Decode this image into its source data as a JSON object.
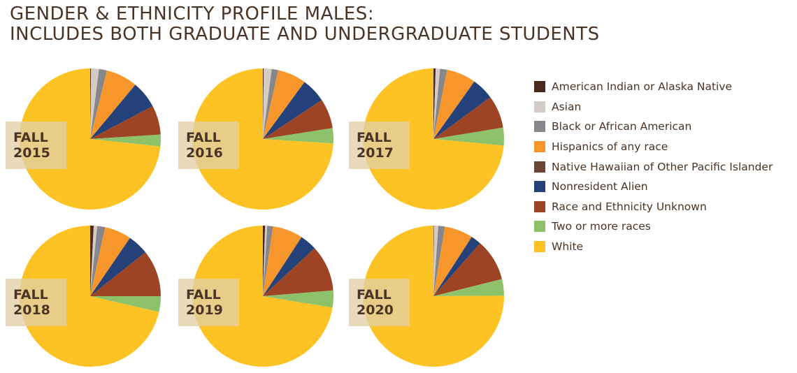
{
  "title": {
    "line1": "GENDER & ETHNICITY PROFILE MALES:",
    "line2": "INCLUDES BOTH GRADUATE AND UNDERGRADUATE STUDENTS"
  },
  "colors": {
    "American Indian or Alaska Native": "#4a2a1c",
    "Asian": "#d4cbc6",
    "Black or African American": "#85878a",
    "Hispanics of any race": "#f7962b",
    "Native Hawaiian of Other Pacific Islander": "#6e4434",
    "Nonresident Alien": "#24417a",
    "Race and Ethnicity Unknown": "#9c4423",
    "Two or more races": "#8dc26a",
    "White": "#fdc223",
    "label_box": "#e1cfa6",
    "label_text": "#4a3426"
  },
  "legend": [
    "American Indian or Alaska Native",
    "Asian",
    "Black or African American",
    "Hispanics of any race",
    "Native Hawaiian of Other Pacific Islander",
    "Nonresident Alien",
    "Race and Ethnicity Unknown",
    "Two or more races",
    "White"
  ],
  "chart_data": [
    {
      "type": "pie",
      "label": [
        "FALL",
        "2015"
      ],
      "categories": [
        "American Indian or Alaska Native",
        "Asian",
        "Black or African American",
        "Hispanics of any race",
        "Native Hawaiian of Other Pacific Islander",
        "Nonresident Alien",
        "Race and Ethnicity Unknown",
        "Two or more races",
        "White"
      ],
      "values": [
        0.2,
        1.8,
        1.8,
        7.2,
        0.1,
        6.2,
        6.7,
        2.7,
        73.3
      ]
    },
    {
      "type": "pie",
      "label": [
        "FALL",
        "2016"
      ],
      "categories": [
        "American Indian or Alaska Native",
        "Asian",
        "Black or African American",
        "Hispanics of any race",
        "Native Hawaiian of Other Pacific Islander",
        "Nonresident Alien",
        "Race and Ethnicity Unknown",
        "Two or more races",
        "White"
      ],
      "values": [
        0.2,
        1.8,
        1.5,
        6.5,
        0.1,
        5.6,
        6.8,
        3.5,
        74.0
      ]
    },
    {
      "type": "pie",
      "label": [
        "FALL",
        "2017"
      ],
      "categories": [
        "American Indian or Alaska Native",
        "Asian",
        "Black or African American",
        "Hispanics of any race",
        "Native Hawaiian of Other Pacific Islander",
        "Nonresident Alien",
        "Race and Ethnicity Unknown",
        "Two or more races",
        "White"
      ],
      "values": [
        0.5,
        1.0,
        1.6,
        6.7,
        0.1,
        5.0,
        7.5,
        4.1,
        73.5
      ]
    },
    {
      "type": "pie",
      "label": [
        "FALL",
        "2018"
      ],
      "categories": [
        "American Indian or Alaska Native",
        "Asian",
        "Black or African American",
        "Hispanics of any race",
        "Native Hawaiian of Other Pacific Islander",
        "Nonresident Alien",
        "Race and Ethnicity Unknown",
        "Two or more races",
        "White"
      ],
      "values": [
        0.8,
        0.8,
        1.8,
        6.1,
        0.1,
        4.7,
        10.7,
        3.6,
        71.4
      ]
    },
    {
      "type": "pie",
      "label": [
        "FALL",
        "2019"
      ],
      "categories": [
        "American Indian or Alaska Native",
        "Asian",
        "Black or African American",
        "Hispanics of any race",
        "Native Hawaiian of Other Pacific Islander",
        "Nonresident Alien",
        "Race and Ethnicity Unknown",
        "Two or more races",
        "White"
      ],
      "values": [
        0.5,
        0.5,
        1.3,
        6.9,
        0.1,
        3.8,
        10.6,
        3.9,
        72.4
      ]
    },
    {
      "type": "pie",
      "label": [
        "FALL",
        "2020"
      ],
      "categories": [
        "American Indian or Alaska Native",
        "Asian",
        "Black or African American",
        "Hispanics of any race",
        "Native Hawaiian of Other Pacific Islander",
        "Nonresident Alien",
        "Race and Ethnicity Unknown",
        "Two or more races",
        "White"
      ],
      "values": [
        0.1,
        1.0,
        1.5,
        6.5,
        0.1,
        2.3,
        9.6,
        3.8,
        75.1
      ]
    }
  ]
}
